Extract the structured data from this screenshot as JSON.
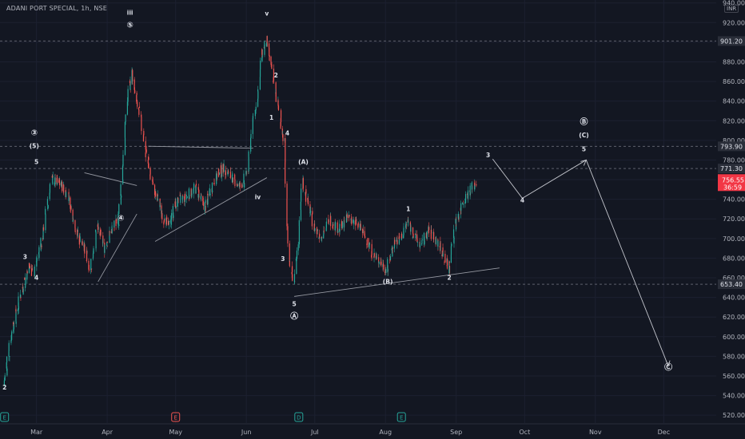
{
  "header": {
    "symbol_line": "ADANI PORT SPECIAL, 1h, NSE",
    "currency": "INR"
  },
  "colors": {
    "up": "#26a69a",
    "down": "#ef5350",
    "background": "#131722",
    "text": "#d1d4dc",
    "wave": "#b2b5be",
    "line": "#c3c5cc"
  },
  "chart_data": {
    "type": "candlestick",
    "title": "ADANI PORT SPECIAL, 1h, NSE",
    "currency": "INR",
    "ylim": [
      512,
      943
    ],
    "y_ticks": [
      "520.00",
      "540.00",
      "560.00",
      "580.00",
      "600.00",
      "620.00",
      "640.00",
      "660.00",
      "680.00",
      "700.00",
      "720.00",
      "740.00",
      "760.00",
      "780.00",
      "800.00",
      "820.00",
      "840.00",
      "860.00",
      "880.00",
      "900.00",
      "920.00",
      "940.00"
    ],
    "x_ticks": [
      "Mar",
      "Apr",
      "May",
      "Jun",
      "Jul",
      "Aug",
      "Sep",
      "Oct",
      "Nov",
      "Dec"
    ],
    "x_domain": [
      "2023-02-13",
      "2023-12-24"
    ],
    "price_levels": [
      {
        "label": "901.20",
        "value": 901.2
      },
      {
        "label": "793.90",
        "value": 793.9
      },
      {
        "label": "771.30",
        "value": 771.3
      },
      {
        "label": "653.40",
        "value": 653.4
      }
    ],
    "last_price": {
      "label": "756.55",
      "countdown": "36:59",
      "value": 756.55
    },
    "price_path": [
      [
        "2023-02-15",
        550
      ],
      [
        "2023-02-18",
        600
      ],
      [
        "2023-02-22",
        640
      ],
      [
        "2023-02-26",
        672
      ],
      [
        "2023-02-28",
        665
      ],
      [
        "2023-03-04",
        702
      ],
      [
        "2023-03-08",
        760
      ],
      [
        "2023-03-12",
        755
      ],
      [
        "2023-03-15",
        745
      ],
      [
        "2023-03-19",
        705
      ],
      [
        "2023-03-22",
        692
      ],
      [
        "2023-03-25",
        668
      ],
      [
        "2023-03-28",
        712
      ],
      [
        "2023-03-31",
        690
      ],
      [
        "2023-04-03",
        708
      ],
      [
        "2023-04-06",
        718
      ],
      [
        "2023-04-08",
        762
      ],
      [
        "2023-04-10",
        840
      ],
      [
        "2023-04-12",
        868
      ],
      [
        "2023-04-14",
        842
      ],
      [
        "2023-04-17",
        808
      ],
      [
        "2023-04-19",
        778
      ],
      [
        "2023-04-22",
        748
      ],
      [
        "2023-04-25",
        728
      ],
      [
        "2023-04-28",
        712
      ],
      [
        "2023-05-02",
        738
      ],
      [
        "2023-05-06",
        742
      ],
      [
        "2023-05-10",
        752
      ],
      [
        "2023-05-14",
        732
      ],
      [
        "2023-05-18",
        758
      ],
      [
        "2023-05-22",
        772
      ],
      [
        "2023-05-26",
        762
      ],
      [
        "2023-05-30",
        752
      ],
      [
        "2023-06-02",
        770
      ],
      [
        "2023-06-04",
        818
      ],
      [
        "2023-06-06",
        842
      ],
      [
        "2023-06-08",
        885
      ],
      [
        "2023-06-10",
        902
      ],
      [
        "2023-06-12",
        878
      ],
      [
        "2023-06-14",
        852
      ],
      [
        "2023-06-16",
        823
      ],
      [
        "2023-06-18",
        798
      ],
      [
        "2023-06-20",
        676
      ],
      [
        "2023-06-22",
        652
      ],
      [
        "2023-06-24",
        698
      ],
      [
        "2023-06-26",
        760
      ],
      [
        "2023-06-28",
        738
      ],
      [
        "2023-07-01",
        712
      ],
      [
        "2023-07-04",
        702
      ],
      [
        "2023-07-08",
        720
      ],
      [
        "2023-07-12",
        708
      ],
      [
        "2023-07-16",
        722
      ],
      [
        "2023-07-20",
        714
      ],
      [
        "2023-07-24",
        700
      ],
      [
        "2023-07-27",
        682
      ],
      [
        "2023-07-30",
        676
      ],
      [
        "2023-08-02",
        668
      ],
      [
        "2023-08-05",
        696
      ],
      [
        "2023-08-08",
        700
      ],
      [
        "2023-08-11",
        718
      ],
      [
        "2023-08-14",
        702
      ],
      [
        "2023-08-17",
        692
      ],
      [
        "2023-08-20",
        708
      ],
      [
        "2023-08-23",
        700
      ],
      [
        "2023-08-26",
        688
      ],
      [
        "2023-08-29",
        668
      ],
      [
        "2023-09-01",
        716
      ],
      [
        "2023-09-04",
        736
      ],
      [
        "2023-09-07",
        748
      ],
      [
        "2023-09-10",
        757
      ]
    ],
    "annotations": [
      {
        "text": "iii",
        "date": "2023-04-11",
        "price": 928
      },
      {
        "text": "⑤",
        "date": "2023-04-11",
        "price": 915
      },
      {
        "text": "v",
        "date": "2023-06-10",
        "price": 927
      },
      {
        "text": "2",
        "date": "2023-06-14",
        "price": 864
      },
      {
        "text": "1",
        "date": "2023-06-12",
        "price": 821
      },
      {
        "text": "③",
        "date": "2023-02-28",
        "price": 805
      },
      {
        "text": "(5)",
        "date": "2023-02-28",
        "price": 792
      },
      {
        "text": "5",
        "date": "2023-03-01",
        "price": 776
      },
      {
        "text": "3",
        "date": "2023-02-24",
        "price": 679
      },
      {
        "text": "4",
        "date": "2023-02-29",
        "price": 658
      },
      {
        "text": "2",
        "date": "2023-02-15",
        "price": 546
      },
      {
        "text": "④",
        "date": "2023-04-07",
        "price": 718
      },
      {
        "text": "iv",
        "date": "2023-06-06",
        "price": 740
      },
      {
        "text": "4",
        "date": "2023-06-19",
        "price": 805
      },
      {
        "text": "3",
        "date": "2023-06-17",
        "price": 677
      },
      {
        "text": "5",
        "date": "2023-06-22",
        "price": 631
      },
      {
        "text": "Ⓐ",
        "date": "2023-06-22",
        "price": 618
      },
      {
        "text": "(A)",
        "date": "2023-06-26",
        "price": 776
      },
      {
        "text": "1",
        "date": "2023-08-11",
        "price": 728
      },
      {
        "text": "(B)",
        "date": "2023-08-02",
        "price": 654
      },
      {
        "text": "2",
        "date": "2023-08-29",
        "price": 658
      },
      {
        "text": "3",
        "date": "2023-09-15",
        "price": 783
      },
      {
        "text": "4",
        "date": "2023-09-30",
        "price": 737
      },
      {
        "text": "Ⓑ",
        "date": "2023-10-27",
        "price": 816
      },
      {
        "text": "(C)",
        "date": "2023-10-27",
        "price": 803
      },
      {
        "text": "5",
        "date": "2023-10-27",
        "price": 789
      },
      {
        "text": "Ⓒ",
        "date": "2023-12-03",
        "price": 566
      }
    ],
    "projection": [
      [
        "2023-09-17",
        781
      ],
      [
        "2023-09-30",
        741
      ],
      [
        "2023-10-28",
        780
      ],
      [
        "2023-12-03",
        570
      ]
    ],
    "trendlines": [
      [
        [
          "2023-03-28",
          656
        ],
        [
          "2023-04-14",
          725
        ]
      ],
      [
        [
          "2023-03-22",
          767
        ],
        [
          "2023-04-14",
          754
        ]
      ],
      [
        [
          "2023-04-22",
          697
        ],
        [
          "2023-06-10",
          762
        ]
      ],
      [
        [
          "2023-04-19",
          794
        ],
        [
          "2023-06-04",
          792
        ]
      ],
      [
        [
          "2023-06-22",
          641
        ],
        [
          "2023-09-20",
          670
        ]
      ]
    ],
    "event_markers": [
      {
        "text": "E",
        "date": "2023-02-15",
        "color": "#26a69a"
      },
      {
        "text": "E",
        "date": "2023-05-01",
        "color": "#ef5350"
      },
      {
        "text": "D",
        "date": "2023-06-24",
        "color": "#26a69a"
      },
      {
        "text": "E",
        "date": "2023-08-08",
        "color": "#26a69a"
      }
    ]
  }
}
